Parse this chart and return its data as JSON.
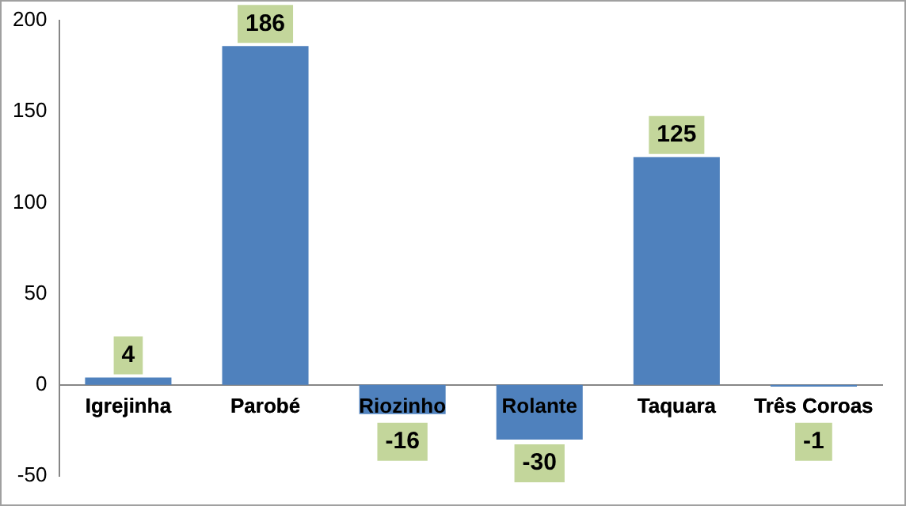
{
  "chart_data": {
    "type": "bar",
    "categories": [
      "Igrejinha",
      "Parobé",
      "Riozinho",
      "Rolante",
      "Taquara",
      "Três Coroas"
    ],
    "values": [
      4,
      186,
      -16,
      -30,
      125,
      -1
    ],
    "color": "#4f81bd",
    "ylim": [
      -50,
      200
    ],
    "yticks": [
      -50,
      0,
      50,
      100,
      150,
      200
    ],
    "grid": false,
    "legend": false,
    "data_labels": true
  }
}
